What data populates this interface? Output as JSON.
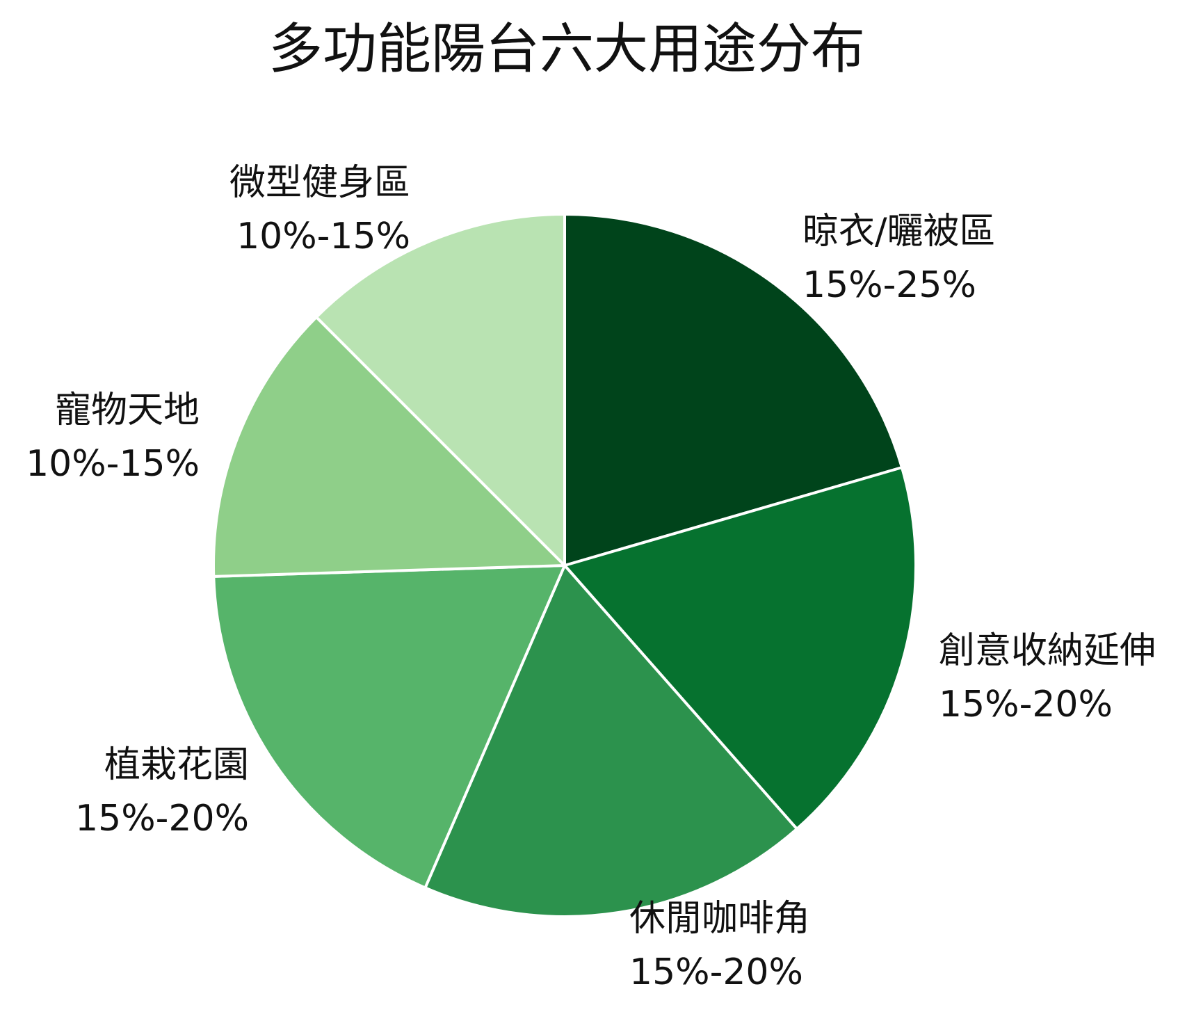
{
  "chart_data": {
    "type": "pie",
    "title": "多功能陽台六大用途分布",
    "slices": [
      {
        "label": "晾衣/曬被區",
        "range_text": "15%-25%",
        "value": 20.5,
        "color": "#00441b"
      },
      {
        "label": "創意收納延伸",
        "range_text": "15%-20%",
        "value": 18.0,
        "color": "#06722f"
      },
      {
        "label": "休閒咖啡角",
        "range_text": "15%-20%",
        "value": 18.0,
        "color": "#2c924d"
      },
      {
        "label": "植栽花園",
        "range_text": "15%-20%",
        "value": 18.0,
        "color": "#56b46a"
      },
      {
        "label": "寵物天地",
        "range_text": "10%-15%",
        "value": 13.0,
        "color": "#8fcf89"
      },
      {
        "label": "微型健身區",
        "range_text": "10%-15%",
        "value": 12.5,
        "color": "#b9e3b2"
      }
    ]
  }
}
